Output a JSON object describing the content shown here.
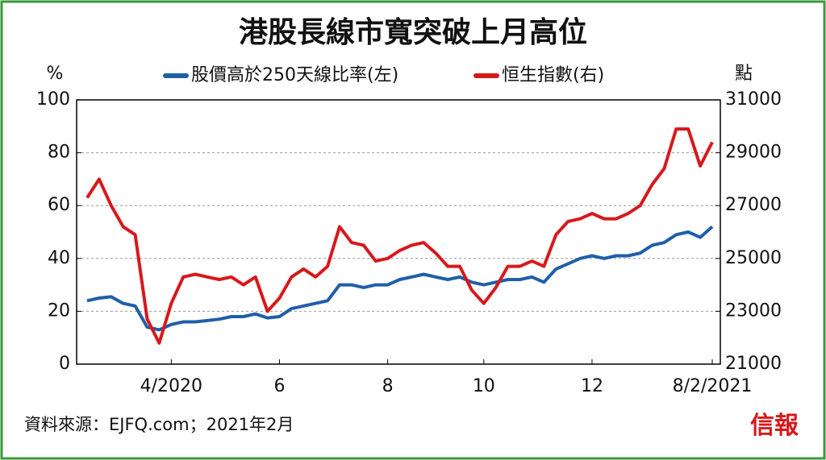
{
  "chart_data": {
    "type": "line",
    "title": "港股長線市寬突破上月高位",
    "y_label": "%",
    "y2_label": "點",
    "source": "資料來源：EJFQ.com；2021年2月",
    "logo": "信報",
    "categories": [
      null,
      null,
      null,
      null,
      null,
      null,
      null,
      "4/2020",
      null,
      null,
      null,
      null,
      null,
      null,
      null,
      null,
      "6",
      null,
      null,
      null,
      null,
      null,
      null,
      null,
      null,
      "8",
      null,
      null,
      null,
      null,
      null,
      null,
      null,
      "10",
      null,
      null,
      null,
      null,
      null,
      null,
      null,
      null,
      "12",
      null,
      null,
      null,
      null,
      null,
      null,
      null,
      null,
      null,
      "8/2/2021"
    ],
    "series": [
      {
        "name": "股價高於250天線比率(左)",
        "color": "#1f5fa8",
        "axis": "y",
        "values": [
          24,
          25,
          25.5,
          23,
          22,
          14,
          13,
          15,
          16,
          16,
          16.5,
          17,
          18,
          18,
          19,
          17.5,
          18,
          21,
          22,
          23,
          24,
          30,
          30,
          29,
          30,
          30,
          32,
          33,
          34,
          33,
          32,
          33,
          31,
          30,
          31,
          32,
          32,
          33,
          31,
          36,
          38,
          40,
          41,
          40,
          41,
          41,
          42,
          45,
          46,
          49,
          50,
          48,
          52
        ]
      },
      {
        "name": "恒生指數(右)",
        "color": "#d7191c",
        "axis": "y2",
        "values": [
          27300,
          28000,
          27000,
          26200,
          25900,
          22700,
          21800,
          23300,
          24300,
          24400,
          24300,
          24200,
          24300,
          24000,
          24300,
          23000,
          23500,
          24300,
          24600,
          24300,
          24700,
          26200,
          25600,
          25500,
          24900,
          25000,
          25300,
          25500,
          25600,
          25200,
          24700,
          24700,
          23800,
          23300,
          23900,
          24700,
          24700,
          24900,
          24700,
          25900,
          26400,
          26500,
          26700,
          26500,
          26500,
          26700,
          27000,
          27800,
          28400,
          29900,
          29900,
          28500,
          29400
        ]
      }
    ],
    "ylim": [
      0,
      100
    ],
    "yticks": [
      0,
      20,
      40,
      60,
      80,
      100
    ],
    "y2lim": [
      21000,
      31000
    ],
    "y2ticks": [
      21000,
      23000,
      25000,
      27000,
      29000,
      31000
    ],
    "grid": true
  }
}
